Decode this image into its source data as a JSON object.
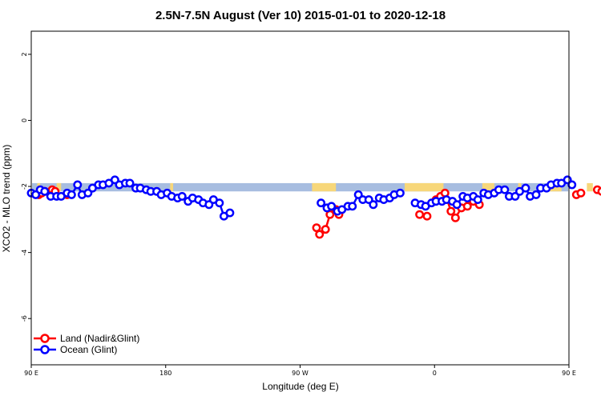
{
  "chart_data": {
    "type": "line",
    "title": "2.5N-7.5N August (Ver 10)   2015-01-01 to 2020-12-18",
    "xlabel": "Longitude (deg E)",
    "ylabel": "XCO2 - MLO trend (ppm)",
    "xlim": [
      90,
      450
    ],
    "ylim": [
      -7.4,
      2.7
    ],
    "x_ticks": [
      {
        "value": 90,
        "label": "90 E"
      },
      {
        "value": 180,
        "label": "180"
      },
      {
        "value": 270,
        "label": "90 W"
      },
      {
        "value": 360,
        "label": "0"
      },
      {
        "value": 450,
        "label": "90 E"
      },
      {
        "value": 540,
        "label": "180"
      }
    ],
    "y_ticks": [
      {
        "value": 2,
        "label": "2"
      },
      {
        "value": 0,
        "label": "0"
      },
      {
        "value": -2,
        "label": "-2"
      },
      {
        "value": -4,
        "label": "-4"
      },
      {
        "value": -6,
        "label": "-6"
      }
    ],
    "grid": false,
    "legend_position": "bottom-left",
    "land_band": {
      "y_top": -1.9,
      "y_bottom": -2.15,
      "ocean_color": "#a7bde0",
      "land_color": "#f7d77a",
      "land_segments": [
        [
          94,
          96
        ],
        [
          107,
          110
        ],
        [
          183,
          185
        ],
        [
          278,
          294
        ],
        [
          340,
          366
        ],
        [
          392,
          400
        ],
        [
          416,
          418
        ],
        [
          436,
          445
        ],
        [
          462,
          466
        ],
        [
          478,
          480
        ]
      ]
    },
    "series": [
      {
        "name": "Land (Nadir&Glint)",
        "color": "#ff0000",
        "segments": [
          [
            [
              95,
              -2.25
            ],
            [
              97,
              -2.2
            ],
            [
              99,
              -2.15
            ]
          ],
          [
            [
              104,
              -2.1
            ],
            [
              106,
              -2.15
            ]
          ],
          [
            [
              114,
              -2.25
            ]
          ],
          [
            [
              281,
              -3.25
            ],
            [
              283,
              -3.45
            ],
            [
              287,
              -3.3
            ],
            [
              290,
              -2.85
            ],
            [
              294,
              -2.7
            ],
            [
              296,
              -2.85
            ]
          ],
          [
            [
              350,
              -2.85
            ],
            [
              355,
              -2.9
            ]
          ],
          [
            [
              361,
              -2.4
            ],
            [
              364,
              -2.3
            ],
            [
              367,
              -2.2
            ],
            [
              371,
              -2.75
            ],
            [
              374,
              -2.95
            ],
            [
              378,
              -2.65
            ],
            [
              382,
              -2.6
            ],
            [
              386,
              -2.45
            ],
            [
              390,
              -2.55
            ]
          ],
          [
            [
              455,
              -2.25
            ],
            [
              458,
              -2.2
            ]
          ],
          [
            [
              469,
              -2.1
            ],
            [
              472,
              -2.15
            ],
            [
              476,
              -2.25
            ]
          ]
        ]
      },
      {
        "name": "Ocean (Glint)",
        "color": "#0000ff",
        "segments": [
          [
            [
              90,
              -2.2
            ],
            [
              93,
              -2.25
            ],
            [
              96,
              -2.1
            ],
            [
              99,
              -2.15
            ],
            [
              103,
              -2.3
            ],
            [
              107,
              -2.3
            ],
            [
              110,
              -2.3
            ],
            [
              114,
              -2.2
            ],
            [
              117,
              -2.25
            ],
            [
              121,
              -1.95
            ],
            [
              124,
              -2.25
            ],
            [
              128,
              -2.2
            ],
            [
              131,
              -2.05
            ],
            [
              135,
              -1.95
            ],
            [
              138,
              -1.95
            ],
            [
              142,
              -1.9
            ],
            [
              146,
              -1.8
            ],
            [
              149,
              -1.95
            ],
            [
              153,
              -1.9
            ],
            [
              156,
              -1.9
            ],
            [
              160,
              -2.05
            ],
            [
              163,
              -2.05
            ],
            [
              167,
              -2.1
            ],
            [
              170,
              -2.15
            ],
            [
              174,
              -2.15
            ],
            [
              177,
              -2.25
            ],
            [
              181,
              -2.2
            ],
            [
              184,
              -2.3
            ],
            [
              188,
              -2.35
            ],
            [
              191,
              -2.3
            ],
            [
              195,
              -2.45
            ],
            [
              198,
              -2.35
            ],
            [
              202,
              -2.4
            ],
            [
              205,
              -2.5
            ],
            [
              209,
              -2.55
            ],
            [
              212,
              -2.4
            ],
            [
              216,
              -2.5
            ],
            [
              219,
              -2.9
            ],
            [
              223,
              -2.8
            ]
          ],
          [
            [
              284,
              -2.5
            ],
            [
              288,
              -2.65
            ],
            [
              291,
              -2.6
            ],
            [
              295,
              -2.75
            ],
            [
              298,
              -2.7
            ],
            [
              302,
              -2.6
            ],
            [
              305,
              -2.6
            ],
            [
              309,
              -2.25
            ],
            [
              312,
              -2.4
            ],
            [
              316,
              -2.4
            ],
            [
              319,
              -2.55
            ],
            [
              323,
              -2.35
            ],
            [
              326,
              -2.4
            ],
            [
              330,
              -2.35
            ],
            [
              333,
              -2.25
            ],
            [
              337,
              -2.2
            ]
          ],
          [
            [
              347,
              -2.5
            ],
            [
              351,
              -2.55
            ],
            [
              354,
              -2.6
            ],
            [
              358,
              -2.5
            ],
            [
              361,
              -2.45
            ],
            [
              365,
              -2.45
            ],
            [
              368,
              -2.4
            ],
            [
              372,
              -2.45
            ],
            [
              375,
              -2.55
            ],
            [
              379,
              -2.3
            ],
            [
              382,
              -2.35
            ],
            [
              386,
              -2.3
            ],
            [
              389,
              -2.4
            ],
            [
              393,
              -2.2
            ],
            [
              396,
              -2.25
            ],
            [
              400,
              -2.2
            ],
            [
              403,
              -2.1
            ],
            [
              407,
              -2.1
            ],
            [
              410,
              -2.3
            ],
            [
              414,
              -2.3
            ],
            [
              417,
              -2.15
            ],
            [
              421,
              -2.05
            ],
            [
              424,
              -2.3
            ],
            [
              428,
              -2.25
            ],
            [
              431,
              -2.05
            ],
            [
              435,
              -2.05
            ],
            [
              438,
              -1.95
            ],
            [
              442,
              -1.9
            ],
            [
              445,
              -1.9
            ],
            [
              449,
              -1.8
            ],
            [
              452,
              -1.95
            ]
          ]
        ]
      }
    ]
  }
}
